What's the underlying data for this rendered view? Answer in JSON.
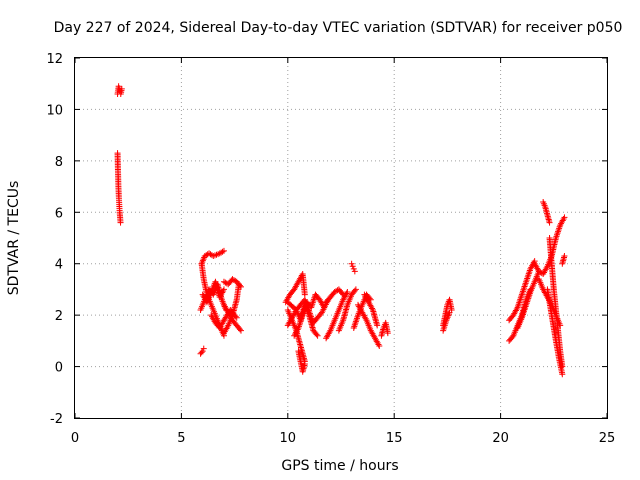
{
  "chart_data": {
    "type": "scatter",
    "title": "Day 227 of 2024, Sidereal Day-to-day VTEC variation (SDTVAR) for receiver p050",
    "xlabel": "GPS time / hours",
    "ylabel": "SDTVAR / TECUs",
    "xlim": [
      0,
      25
    ],
    "ylim": [
      -2,
      12
    ],
    "xticks": [
      "0",
      "5",
      "10",
      "15",
      "20",
      "25"
    ],
    "yticks": [
      "-2",
      "0",
      "2",
      "4",
      "6",
      "8",
      "10",
      "12"
    ],
    "grid": true,
    "marker": "+",
    "color": "#ff0000",
    "series": [
      {
        "name": "SDTVAR",
        "tracks": [
          {
            "x": [
              2.0,
              2.05,
              2.1,
              2.15,
              2.2
            ],
            "y": [
              10.6,
              10.9,
              10.7,
              10.6,
              10.8
            ]
          },
          {
            "x": [
              2.0,
              2.02,
              2.04,
              2.06,
              2.08,
              2.1,
              2.12,
              2.14
            ],
            "y": [
              8.3,
              7.6,
              7.0,
              6.6,
              6.3,
              6.0,
              5.8,
              5.6
            ]
          },
          {
            "x": [
              5.9,
              6.0,
              6.05
            ],
            "y": [
              0.5,
              0.6,
              0.7
            ]
          },
          {
            "x": [
              5.95,
              6.1,
              6.3,
              6.5,
              6.8,
              7.0
            ],
            "y": [
              4.0,
              4.3,
              4.4,
              4.3,
              4.4,
              4.5
            ]
          },
          {
            "x": [
              5.95,
              6.05,
              6.2,
              6.4,
              6.6,
              6.8,
              7.0
            ],
            "y": [
              4.0,
              3.4,
              2.8,
              2.4,
              2.0,
              1.6,
              1.2
            ]
          },
          {
            "x": [
              5.9,
              6.1,
              6.3,
              6.5,
              6.7,
              6.9,
              7.1
            ],
            "y": [
              2.2,
              2.6,
              3.0,
              2.8,
              3.2,
              2.6,
              2.2
            ]
          },
          {
            "x": [
              6.0,
              6.2,
              6.4,
              6.6,
              6.8,
              7.0
            ],
            "y": [
              2.8,
              2.5,
              2.9,
              3.3,
              2.7,
              3.0
            ]
          },
          {
            "x": [
              7.0,
              7.2,
              7.4,
              7.6,
              7.8
            ],
            "y": [
              3.3,
              3.2,
              3.4,
              3.3,
              3.1
            ]
          },
          {
            "x": [
              7.0,
              7.2,
              7.4,
              7.6,
              7.7
            ],
            "y": [
              1.3,
              1.6,
              2.0,
              2.6,
              3.2
            ]
          },
          {
            "x": [
              7.0,
              7.2,
              7.4,
              7.6,
              7.8
            ],
            "y": [
              2.4,
              2.1,
              1.8,
              1.6,
              1.4
            ]
          },
          {
            "x": [
              6.4,
              6.6,
              6.8,
              7.0,
              7.3,
              7.6
            ],
            "y": [
              2.0,
              1.7,
              1.5,
              1.8,
              2.2,
              1.9
            ]
          },
          {
            "x": [
              9.9,
              10.1,
              10.3,
              10.5,
              10.7,
              10.8
            ],
            "y": [
              2.5,
              2.8,
              3.0,
              3.3,
              3.6,
              2.8
            ]
          },
          {
            "x": [
              10.0,
              10.2,
              10.4,
              10.6,
              10.8
            ],
            "y": [
              2.2,
              1.8,
              1.4,
              0.8,
              0.2
            ]
          },
          {
            "x": [
              10.5,
              10.6,
              10.7,
              10.8
            ],
            "y": [
              0.6,
              0.2,
              -0.2,
              0.1
            ]
          },
          {
            "x": [
              10.0,
              10.2,
              10.4,
              10.6,
              10.8,
              11.0,
              11.2,
              11.4
            ],
            "y": [
              1.6,
              1.9,
              2.2,
              1.8,
              2.4,
              2.0,
              1.4,
              1.2
            ]
          },
          {
            "x": [
              10.3,
              10.5,
              10.7,
              10.9,
              11.1,
              11.3,
              11.5,
              11.7
            ],
            "y": [
              1.2,
              1.5,
              2.0,
              2.5,
              2.3,
              2.8,
              2.6,
              2.3
            ]
          },
          {
            "x": [
              10.0,
              10.4,
              10.8,
              11.2,
              11.6,
              11.9
            ],
            "y": [
              2.5,
              2.2,
              2.6,
              1.7,
              2.1,
              2.6
            ]
          },
          {
            "x": [
              11.8,
              12.0,
              12.2,
              12.4,
              12.6,
              12.8
            ],
            "y": [
              1.1,
              1.4,
              1.8,
              2.2,
              2.6,
              2.9
            ]
          },
          {
            "x": [
              11.8,
              12.0,
              12.2,
              12.4,
              12.6
            ],
            "y": [
              2.5,
              2.7,
              2.9,
              3.0,
              2.8
            ]
          },
          {
            "x": [
              12.4,
              12.6,
              12.8,
              13.0,
              13.2
            ],
            "y": [
              1.4,
              1.8,
              2.4,
              2.8,
              3.0
            ]
          },
          {
            "x": [
              13.0,
              13.05,
              13.1,
              13.15
            ],
            "y": [
              4.0,
              3.9,
              3.8,
              3.7
            ]
          },
          {
            "x": [
              13.1,
              13.3,
              13.5,
              13.7,
              13.9
            ],
            "y": [
              1.5,
              2.0,
              2.4,
              2.8,
              2.6
            ]
          },
          {
            "x": [
              13.3,
              13.5,
              13.7,
              13.9,
              14.1,
              14.3
            ],
            "y": [
              2.4,
              2.1,
              1.8,
              1.4,
              1.1,
              0.8
            ]
          },
          {
            "x": [
              13.6,
              13.8,
              14.0,
              14.2
            ],
            "y": [
              2.8,
              2.5,
              2.2,
              1.6
            ]
          },
          {
            "x": [
              14.4,
              14.5,
              14.6,
              14.7
            ],
            "y": [
              1.2,
              1.5,
              1.7,
              1.3
            ]
          },
          {
            "x": [
              17.3,
              17.4,
              17.5,
              17.6,
              17.7
            ],
            "y": [
              1.6,
              2.0,
              2.4,
              2.6,
              2.2
            ]
          },
          {
            "x": [
              17.3,
              17.45,
              17.6
            ],
            "y": [
              1.4,
              1.8,
              2.1
            ]
          },
          {
            "x": [
              20.4,
              20.6,
              20.8,
              21.0,
              21.2,
              21.4,
              21.6
            ],
            "y": [
              1.8,
              2.0,
              2.3,
              2.8,
              3.3,
              3.8,
              4.1
            ]
          },
          {
            "x": [
              20.4,
              20.6,
              20.8,
              21.0,
              21.2,
              21.4
            ],
            "y": [
              1.0,
              1.2,
              1.6,
              2.0,
              2.6,
              3.0
            ]
          },
          {
            "x": [
              20.8,
              21.0,
              21.2,
              21.4,
              21.6,
              21.8
            ],
            "y": [
              1.5,
              1.9,
              2.4,
              2.9,
              3.3,
              3.7
            ]
          },
          {
            "x": [
              21.6,
              21.8,
              22.0,
              22.2,
              22.4,
              22.6,
              22.8,
              23.0
            ],
            "y": [
              4.0,
              3.7,
              3.6,
              3.9,
              4.3,
              5.0,
              5.5,
              5.8
            ]
          },
          {
            "x": [
              21.8,
              22.0,
              22.2,
              22.4,
              22.6,
              22.8
            ],
            "y": [
              3.4,
              3.0,
              2.7,
              2.4,
              2.0,
              1.6
            ]
          },
          {
            "x": [
              22.0,
              22.1,
              22.2,
              22.3
            ],
            "y": [
              6.4,
              6.2,
              5.9,
              5.6
            ]
          },
          {
            "x": [
              22.3,
              22.4,
              22.5,
              22.6,
              22.7,
              22.8,
              22.9
            ],
            "y": [
              5.0,
              4.0,
              3.0,
              2.2,
              1.4,
              0.6,
              0.0
            ]
          },
          {
            "x": [
              22.2,
              22.4,
              22.6,
              22.75,
              22.9
            ],
            "y": [
              3.0,
              2.0,
              1.0,
              0.3,
              -0.3
            ]
          },
          {
            "x": [
              22.9,
              23.0
            ],
            "y": [
              4.0,
              4.3
            ]
          }
        ]
      }
    ]
  }
}
